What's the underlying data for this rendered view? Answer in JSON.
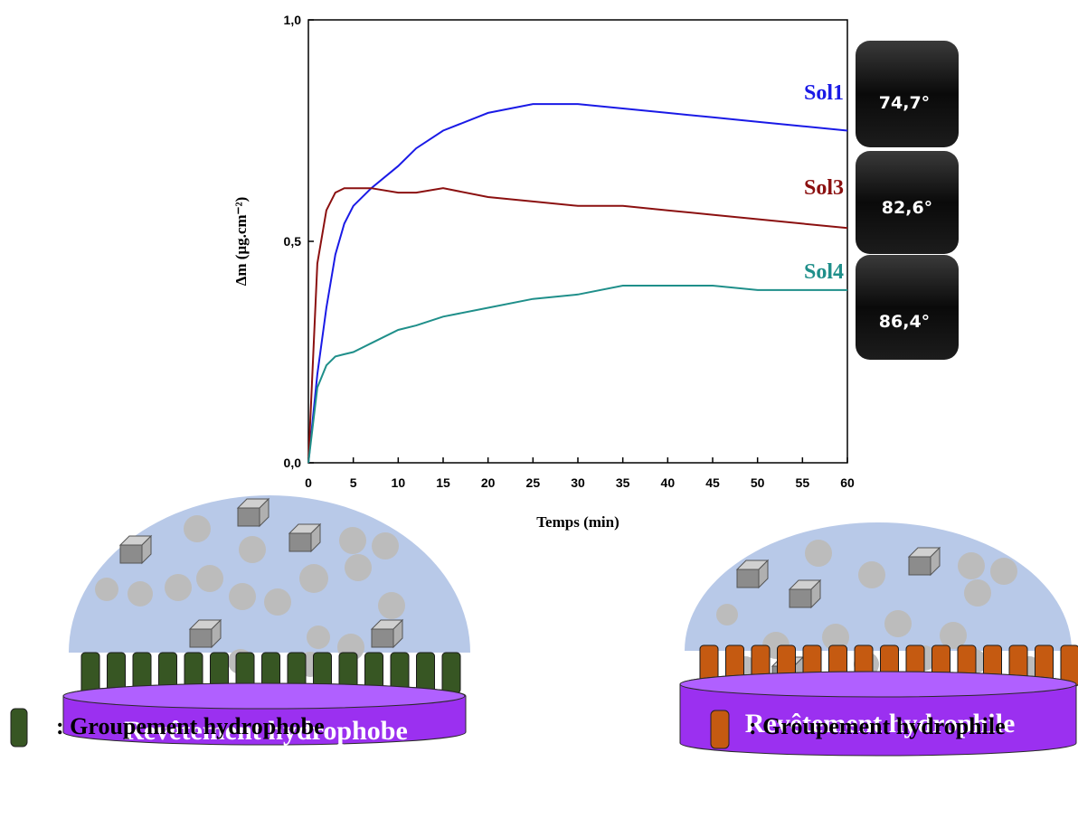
{
  "chart_data": {
    "type": "line",
    "xlabel": "Temps (min)",
    "ylabel": "Δm (μg.cm⁻²)",
    "x": [
      0,
      1,
      2,
      3,
      4,
      5,
      7,
      10,
      12,
      15,
      20,
      25,
      30,
      35,
      40,
      45,
      50,
      55,
      60
    ],
    "series": [
      {
        "name": "Sol1",
        "color": "#1a1ae6",
        "values": [
          0,
          0.2,
          0.35,
          0.47,
          0.54,
          0.58,
          0.62,
          0.67,
          0.71,
          0.75,
          0.79,
          0.81,
          0.81,
          0.8,
          0.79,
          0.78,
          0.77,
          0.76,
          0.75
        ]
      },
      {
        "name": "Sol3",
        "color": "#8b1010",
        "values": [
          0,
          0.45,
          0.57,
          0.61,
          0.62,
          0.62,
          0.62,
          0.61,
          0.61,
          0.62,
          0.6,
          0.59,
          0.58,
          0.58,
          0.57,
          0.56,
          0.55,
          0.54,
          0.53
        ]
      },
      {
        "name": "Sol4",
        "color": "#1f8f8a",
        "values": [
          0,
          0.17,
          0.22,
          0.24,
          0.245,
          0.25,
          0.27,
          0.3,
          0.31,
          0.33,
          0.35,
          0.37,
          0.38,
          0.4,
          0.4,
          0.4,
          0.39,
          0.39,
          0.39
        ]
      }
    ],
    "xlim": [
      0,
      60
    ],
    "xticks": [
      0,
      5,
      10,
      15,
      20,
      25,
      30,
      35,
      40,
      45,
      50,
      55,
      60
    ],
    "ylim": [
      0,
      1
    ],
    "yticks": [
      {
        "value": 0,
        "label": "0,0"
      },
      {
        "value": 0.5,
        "label": "0,5"
      },
      {
        "value": 1,
        "label": "1,0"
      }
    ],
    "contact_angles": [
      "74,7°",
      "82,6°",
      "86,4°"
    ]
  },
  "diagram": {
    "left": {
      "coating": "Revêtement hydrophobe",
      "legend": ": Groupement hydrophobe"
    },
    "right": {
      "coating": "Revêtement hydrophile",
      "legend": ": Groupement hydrophile"
    }
  }
}
